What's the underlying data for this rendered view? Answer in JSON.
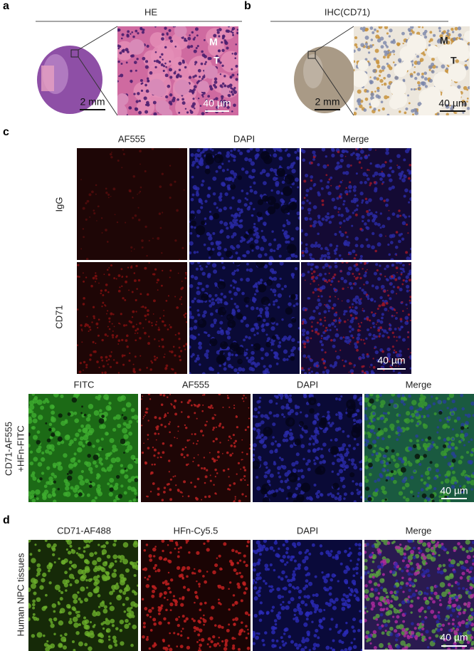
{
  "panels": [
    {
      "label": "a",
      "title": "HE",
      "scale_overview": "2 mm",
      "scale_zoom": "40 µm",
      "markers": [
        "M",
        "T"
      ]
    },
    {
      "label": "b",
      "title": "IHC(CD71)",
      "scale_overview": "2 mm",
      "scale_zoom": "40 µm",
      "markers": [
        "M",
        "T"
      ]
    },
    {
      "label": "c",
      "columns": [
        "AF555",
        "DAPI",
        "Merge"
      ],
      "rows": [
        "IgG",
        "CD71"
      ],
      "scale": "40 µm",
      "combined": {
        "columns": [
          "FITC",
          "AF555",
          "DAPI",
          "Merge"
        ],
        "row": [
          "CD71-AF555",
          "+HFn-FITC"
        ],
        "scale": "40 µm"
      }
    },
    {
      "label": "d",
      "columns": [
        "CD71-AF488",
        "HFn-Cy5.5",
        "DAPI",
        "Merge"
      ],
      "row": "Human NPC tissues",
      "scale": "40 µm"
    }
  ]
}
